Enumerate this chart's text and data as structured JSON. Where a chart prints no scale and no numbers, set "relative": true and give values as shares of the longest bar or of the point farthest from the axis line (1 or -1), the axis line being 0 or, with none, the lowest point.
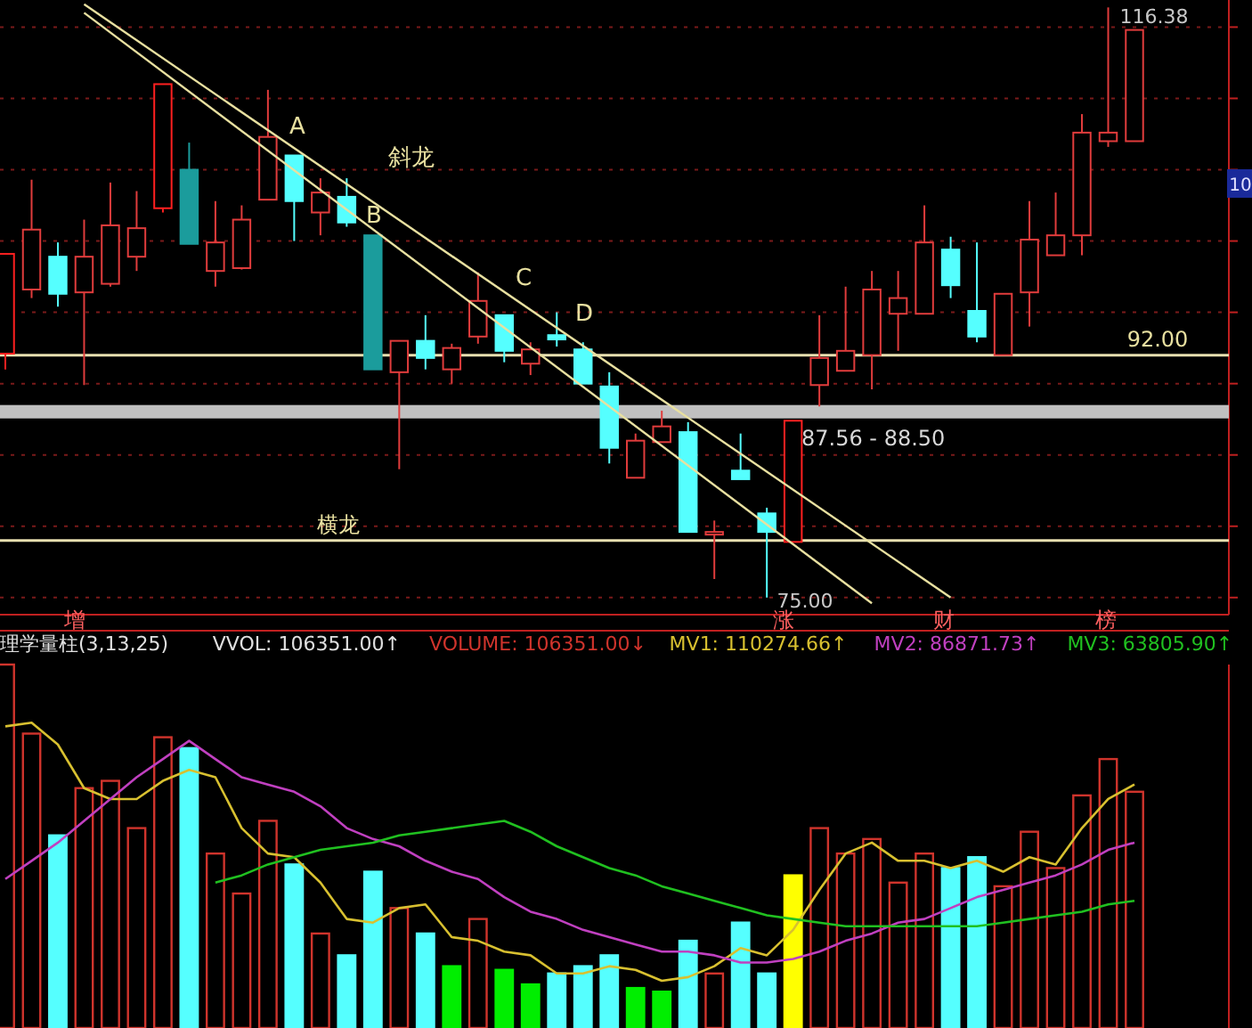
{
  "chart_data": [
    {
      "type": "candlestick",
      "categories": [
        null,
        null,
        null,
        null,
        null,
        null,
        null,
        null,
        null,
        null,
        null,
        null,
        null,
        null,
        null,
        null,
        null,
        null,
        null,
        null,
        null,
        null,
        null,
        null,
        null,
        null,
        null,
        null,
        null,
        null,
        null,
        null,
        null,
        null,
        null,
        null,
        null,
        null,
        null,
        null,
        null,
        null,
        null,
        null
      ],
      "ohlc": [
        [
          92.1,
          99.1,
          91.0,
          99.1
        ],
        [
          96.6,
          104.3,
          96.0,
          100.8
        ],
        [
          98.9,
          99.9,
          95.4,
          96.3
        ],
        [
          96.4,
          101.5,
          89.9,
          98.9
        ],
        [
          97.0,
          104.1,
          96.8,
          101.1
        ],
        [
          98.9,
          103.5,
          97.9,
          100.9
        ],
        [
          102.3,
          111.0,
          102.0,
          111.0
        ],
        [
          105.0,
          106.9,
          99.8,
          99.8
        ],
        [
          97.9,
          102.8,
          96.8,
          99.9
        ],
        [
          98.1,
          102.5,
          98.0,
          101.5
        ],
        [
          102.9,
          110.6,
          102.9,
          107.3
        ],
        [
          106.0,
          106.0,
          100.0,
          102.8
        ],
        [
          102.0,
          104.4,
          100.4,
          103.4
        ],
        [
          103.1,
          104.4,
          101.0,
          101.3
        ],
        [
          100.4,
          100.4,
          91.0,
          91.0
        ],
        [
          90.8,
          93.0,
          84.0,
          93.0
        ],
        [
          93.0,
          94.8,
          91.0,
          91.8
        ],
        [
          91.0,
          92.8,
          90.0,
          92.5
        ],
        [
          93.3,
          97.8,
          92.8,
          95.8
        ],
        [
          94.8,
          94.8,
          91.5,
          92.3
        ],
        [
          91.4,
          92.9,
          90.6,
          92.4
        ],
        [
          93.4,
          95.0,
          92.6,
          93.1
        ],
        [
          92.4,
          92.9,
          90.0,
          90.0
        ],
        [
          89.8,
          90.8,
          84.4,
          85.5
        ],
        [
          83.4,
          86.5,
          83.4,
          86.0
        ],
        [
          85.9,
          88.1,
          85.9,
          87.0
        ],
        [
          86.6,
          87.3,
          79.6,
          79.6
        ],
        [
          79.5,
          80.4,
          76.3,
          79.6
        ],
        [
          83.9,
          86.5,
          83.3,
          83.3
        ],
        [
          80.9,
          81.3,
          75.0,
          79.6
        ],
        [
          78.9,
          87.4,
          78.9,
          87.4
        ],
        [
          89.9,
          94.8,
          88.4,
          91.8
        ],
        [
          90.9,
          96.8,
          90.9,
          92.3
        ],
        [
          92.0,
          97.9,
          89.6,
          96.6
        ],
        [
          94.9,
          97.9,
          92.3,
          96.0
        ],
        [
          94.9,
          102.5,
          94.9,
          99.9
        ],
        [
          99.4,
          100.3,
          96.0,
          96.9
        ],
        [
          95.1,
          99.9,
          92.9,
          93.3
        ],
        [
          92.0,
          96.3,
          92.0,
          96.3
        ],
        [
          96.4,
          102.8,
          94.0,
          100.1
        ],
        [
          99.0,
          103.4,
          99.0,
          100.4
        ],
        [
          100.4,
          108.9,
          99.0,
          107.6
        ],
        [
          107.0,
          116.38,
          106.6,
          107.6
        ],
        [
          107.0,
          114.8,
          107.0,
          114.8
        ]
      ],
      "colors": [
        "#ff2020",
        "#e03c3c",
        "#55ffff",
        "#e03c3c",
        "#e03c3c",
        "#e03c3c",
        "#ff2020",
        "#1b9c9c",
        "#e03c3c",
        "#e03c3c",
        "#e03c3c",
        "#55ffff",
        "#e03c3c",
        "#55ffff",
        "#1b9c9c",
        "#e03c3c",
        "#55ffff",
        "#e03c3c",
        "#e03c3c",
        "#55ffff",
        "#e03c3c",
        "#55ffff",
        "#55ffff",
        "#55ffff",
        "#e03c3c",
        "#e03c3c",
        "#55ffff",
        "#e03c3c",
        "#55ffff",
        "#55ffff",
        "#ff2020",
        "#e03c3c",
        "#e03c3c",
        "#e03c3c",
        "#e03c3c",
        "#e03c3c",
        "#55ffff",
        "#55ffff",
        "#e03c3c",
        "#e03c3c",
        "#e03c3c",
        "#e03c3c",
        "#e03c3c",
        "#e03c3c"
      ],
      "series": [
        {
          "type": "line",
          "name": "斜龙",
          "color": "#e8e0a0",
          "values": [
            null,
            null,
            null,
            116.6,
            null,
            null,
            null,
            null,
            null,
            null,
            null,
            null,
            null,
            null,
            null,
            null,
            null,
            null,
            null,
            null,
            null,
            null,
            null,
            null,
            null,
            null,
            null,
            null,
            null,
            null,
            null,
            null,
            null,
            null,
            null,
            null,
            75.0,
            null,
            null,
            null,
            null,
            null,
            null,
            null
          ]
        },
        {
          "type": "line",
          "color": "#e8e0a0",
          "values": [
            null,
            null,
            null,
            116.0,
            null,
            null,
            null,
            null,
            null,
            null,
            null,
            null,
            null,
            null,
            null,
            null,
            null,
            null,
            null,
            null,
            null,
            null,
            null,
            null,
            null,
            null,
            null,
            null,
            null,
            null,
            null,
            null,
            null,
            74.6,
            null,
            null,
            null,
            null,
            null,
            null,
            null,
            null,
            null,
            null
          ]
        }
      ],
      "ref_lines": [
        {
          "axis": "y",
          "value": 79.0,
          "label": "横龙",
          "color": "#e8e0b0"
        },
        {
          "axis": "y",
          "value": 92.0,
          "label": "92.00",
          "color": "#e8e0b0"
        }
      ],
      "bands": [
        {
          "axis": "y",
          "from": 87.56,
          "to": 88.5,
          "label": "87.56 - 88.50",
          "color": "#c0c0c0"
        }
      ],
      "annotations": [
        "A",
        "B",
        "C",
        "D",
        "116.38",
        "75.00",
        "10",
        "增",
        "涨",
        "财",
        "榜"
      ],
      "ylim": [
        73.8,
        116.9
      ],
      "yticks": [
        {
          "value": 75,
          "label": null
        },
        {
          "value": 80,
          "label": null
        },
        {
          "value": 85,
          "label": null
        },
        {
          "value": 90,
          "label": null
        },
        {
          "value": 95,
          "label": null
        },
        {
          "value": 100,
          "label": null
        },
        {
          "value": 105,
          "label": null
        },
        {
          "value": 110,
          "label": null
        },
        {
          "value": 115,
          "label": null
        }
      ],
      "grid": true
    },
    {
      "type": "bar",
      "relative": true,
      "title": "理学量柱(3,13,25)",
      "annotations": [
        "VVOL: 106351.00↑"
      ],
      "legend": "top right",
      "categories": [
        null,
        null,
        null,
        null,
        null,
        null,
        null,
        null,
        null,
        null,
        null,
        null,
        null,
        null,
        null,
        null,
        null,
        null,
        null,
        null,
        null,
        null,
        null,
        null,
        null,
        null,
        null,
        null,
        null,
        null,
        null,
        null,
        null,
        null,
        null,
        null,
        null,
        null,
        null,
        null,
        null,
        null,
        null,
        null
      ],
      "series": [
        {
          "name": "VOLUME: 106351.00↓",
          "color": "#d0342c",
          "colors": [
            "#d0342c",
            "#d0342c",
            "#55ffff",
            "#d0342c",
            "#d0342c",
            "#d0342c",
            "#d0342c",
            "#55ffff",
            "#d0342c",
            "#d0342c",
            "#d0342c",
            "#55ffff",
            "#d0342c",
            "#55ffff",
            "#55ffff",
            "#d0342c",
            "#55ffff",
            "#00ee00",
            "#d0342c",
            "#00ee00",
            "#00ee00",
            "#55ffff",
            "#55ffff",
            "#55ffff",
            "#00ee00",
            "#00ee00",
            "#55ffff",
            "#d0342c",
            "#55ffff",
            "#55ffff",
            "#ffff00",
            "#d0342c",
            "#d0342c",
            "#d0342c",
            "#d0342c",
            "#d0342c",
            "#55ffff",
            "#55ffff",
            "#d0342c",
            "#d0342c",
            "#d0342c",
            "#d0342c",
            "#d0342c",
            "#d0342c"
          ],
          "values": [
            1,
            0.81,
            0.53,
            0.66,
            0.68,
            0.55,
            0.8,
            0.77,
            0.48,
            0.37,
            0.57,
            0.45,
            0.26,
            0.2,
            0.43,
            0.33,
            0.26,
            0.17,
            0.3,
            0.16,
            0.12,
            0.15,
            0.17,
            0.2,
            0.11,
            0.1,
            0.24,
            0.15,
            0.29,
            0.15,
            0.42,
            0.55,
            0.48,
            0.52,
            0.4,
            0.48,
            0.44,
            0.47,
            0.39,
            0.54,
            0.44,
            0.64,
            0.74,
            0.65
          ]
        },
        {
          "type": "line",
          "name": "MV1: 110274.66↑",
          "color": "#d8c030",
          "values": [
            0.83,
            0.84,
            0.78,
            0.66,
            0.63,
            0.63,
            0.68,
            0.71,
            0.69,
            0.55,
            0.48,
            0.47,
            0.4,
            0.3,
            0.29,
            0.33,
            0.34,
            0.25,
            0.24,
            0.21,
            0.2,
            0.15,
            0.15,
            0.17,
            0.16,
            0.13,
            0.14,
            0.17,
            0.22,
            0.2,
            0.27,
            0.38,
            0.48,
            0.51,
            0.46,
            0.46,
            0.44,
            0.46,
            0.43,
            0.47,
            0.45,
            0.55,
            0.63,
            0.67
          ]
        },
        {
          "type": "line",
          "name": "MV2: 86871.73↑",
          "color": "#c040c0",
          "values": [
            0.41,
            0.46,
            0.51,
            0.57,
            0.63,
            0.69,
            0.74,
            0.79,
            0.74,
            0.69,
            0.67,
            0.65,
            0.61,
            0.55,
            0.52,
            0.5,
            0.46,
            0.43,
            0.41,
            0.36,
            0.32,
            0.3,
            0.27,
            0.25,
            0.23,
            0.21,
            0.21,
            0.2,
            0.18,
            0.18,
            0.19,
            0.21,
            0.24,
            0.26,
            0.29,
            0.3,
            0.33,
            0.36,
            0.38,
            0.4,
            0.42,
            0.45,
            0.49,
            0.51
          ]
        },
        {
          "type": "line",
          "name": "MV3: 63805.90↑",
          "color": "#20c020",
          "values": [
            null,
            null,
            null,
            null,
            null,
            null,
            null,
            null,
            0.4,
            0.42,
            0.45,
            0.47,
            0.49,
            0.5,
            0.51,
            0.53,
            0.54,
            0.55,
            0.56,
            0.57,
            0.54,
            0.5,
            0.47,
            0.44,
            0.42,
            0.39,
            0.37,
            0.35,
            0.33,
            0.31,
            0.3,
            0.29,
            0.28,
            0.28,
            0.28,
            0.28,
            0.28,
            0.28,
            0.29,
            0.3,
            0.31,
            0.32,
            0.34,
            0.35
          ]
        }
      ]
    }
  ]
}
